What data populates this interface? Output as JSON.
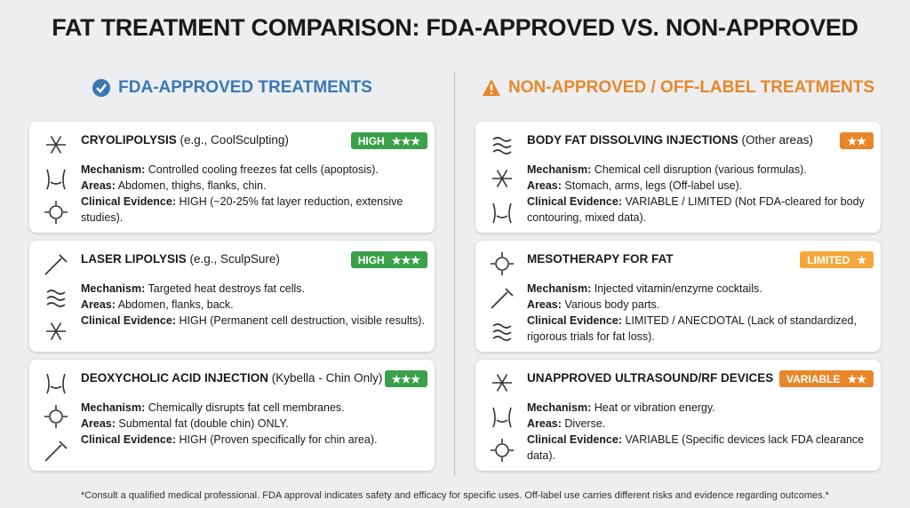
{
  "title": "FAT TREATMENT COMPARISON: FDA-APPROVED VS. NON-APPROVED",
  "columns": [
    {
      "heading": "FDA-APPROVED TREATMENTS",
      "color": "#3a78b5",
      "cards": [
        {
          "name": "CRYOLIPOLYSIS",
          "note": "(e.g., CoolSculpting)",
          "badge": "HIGH",
          "stars": "★★★",
          "badge_color": "#3aa04a",
          "details": [
            {
              "label": "Mechanism:",
              "text": "Controlled cooling freezes fat cells (apoptosis)."
            },
            {
              "label": "Areas:",
              "text": "Abdomen, thighs, flanks, chin."
            },
            {
              "label": "Clinical Evidence:",
              "text": "HIGH (~20-25% fat layer reduction, extensive studies)."
            }
          ]
        },
        {
          "name": "LASER LIPOLYSIS",
          "note": "(e.g., SculpSure)",
          "badge": "HIGH",
          "stars": "★★★",
          "badge_color": "#3aa04a",
          "details": [
            {
              "label": "Mechanism:",
              "text": "Targeted heat destroys fat cells."
            },
            {
              "label": "Areas:",
              "text": "Abdomen, flanks, back."
            },
            {
              "label": "Clinical Evidence:",
              "text": "HIGH (Permanent cell destruction, visible results)."
            }
          ]
        },
        {
          "name": "DEOXYCHOLIC ACID INJECTION",
          "note": "(Kybella - Chin Only)",
          "stars": "★★★",
          "badge_color": "#3aa04a",
          "details": [
            {
              "label": "Mechanism:",
              "text": "Chemically disrupts fat cell membranes."
            },
            {
              "label": "Areas:",
              "text": "Submental fat (double chin) ONLY."
            },
            {
              "label": "Clinical Evidence:",
              "text": "HIGH (Proven specifically for chin area)."
            }
          ]
        }
      ]
    },
    {
      "heading": "NON-APPROVED / OFF-LABEL TREATMENTS",
      "color": "#e8872a",
      "cards": [
        {
          "name": "BODY FAT DISSOLVING INJECTIONS",
          "note": "(Other areas)",
          "stars": "★★",
          "badge_color": "#e8872a",
          "details": [
            {
              "label": "Mechanism:",
              "text": "Chemical cell disruption (various formulas)."
            },
            {
              "label": "Areas:",
              "text": "Stomach, arms, legs (Off-label use)."
            },
            {
              "label": "Clinical Evidence:",
              "text": "VARIABLE / LIMITED (Not FDA-cleared for body contouring, mixed data)."
            }
          ]
        },
        {
          "name": "MESOTHERAPY FOR FAT",
          "badge": "LIMITED",
          "stars": "★",
          "badge_color": "#f4a83a",
          "details": [
            {
              "label": "Mechanism:",
              "text": "Injected vitamin/enzyme cocktails."
            },
            {
              "label": "Areas:",
              "text": "Various body parts."
            },
            {
              "label": "Clinical Evidence:",
              "text": "LIMITED / ANECDOTAL (Lack of standardized, rigorous trials for fat loss)."
            }
          ]
        },
        {
          "name": "UNAPPROVED ULTRASOUND/RF DEVICES",
          "badge": "VARIABLE",
          "stars": "★★",
          "badge_color": "#e8872a",
          "details": [
            {
              "label": "Mechanism:",
              "text": "Heat or vibration energy."
            },
            {
              "label": "Areas:",
              "text": "Diverse."
            },
            {
              "label": "Clinical Evidence:",
              "text": "VARIABLE (Specific devices lack FDA clearance data)."
            }
          ]
        }
      ]
    }
  ],
  "footnote": "*Consult a qualified medical professional. FDA approval indicates safety and efficacy for specific uses. Off-label use carries different risks and evidence regarding outcomes.*"
}
